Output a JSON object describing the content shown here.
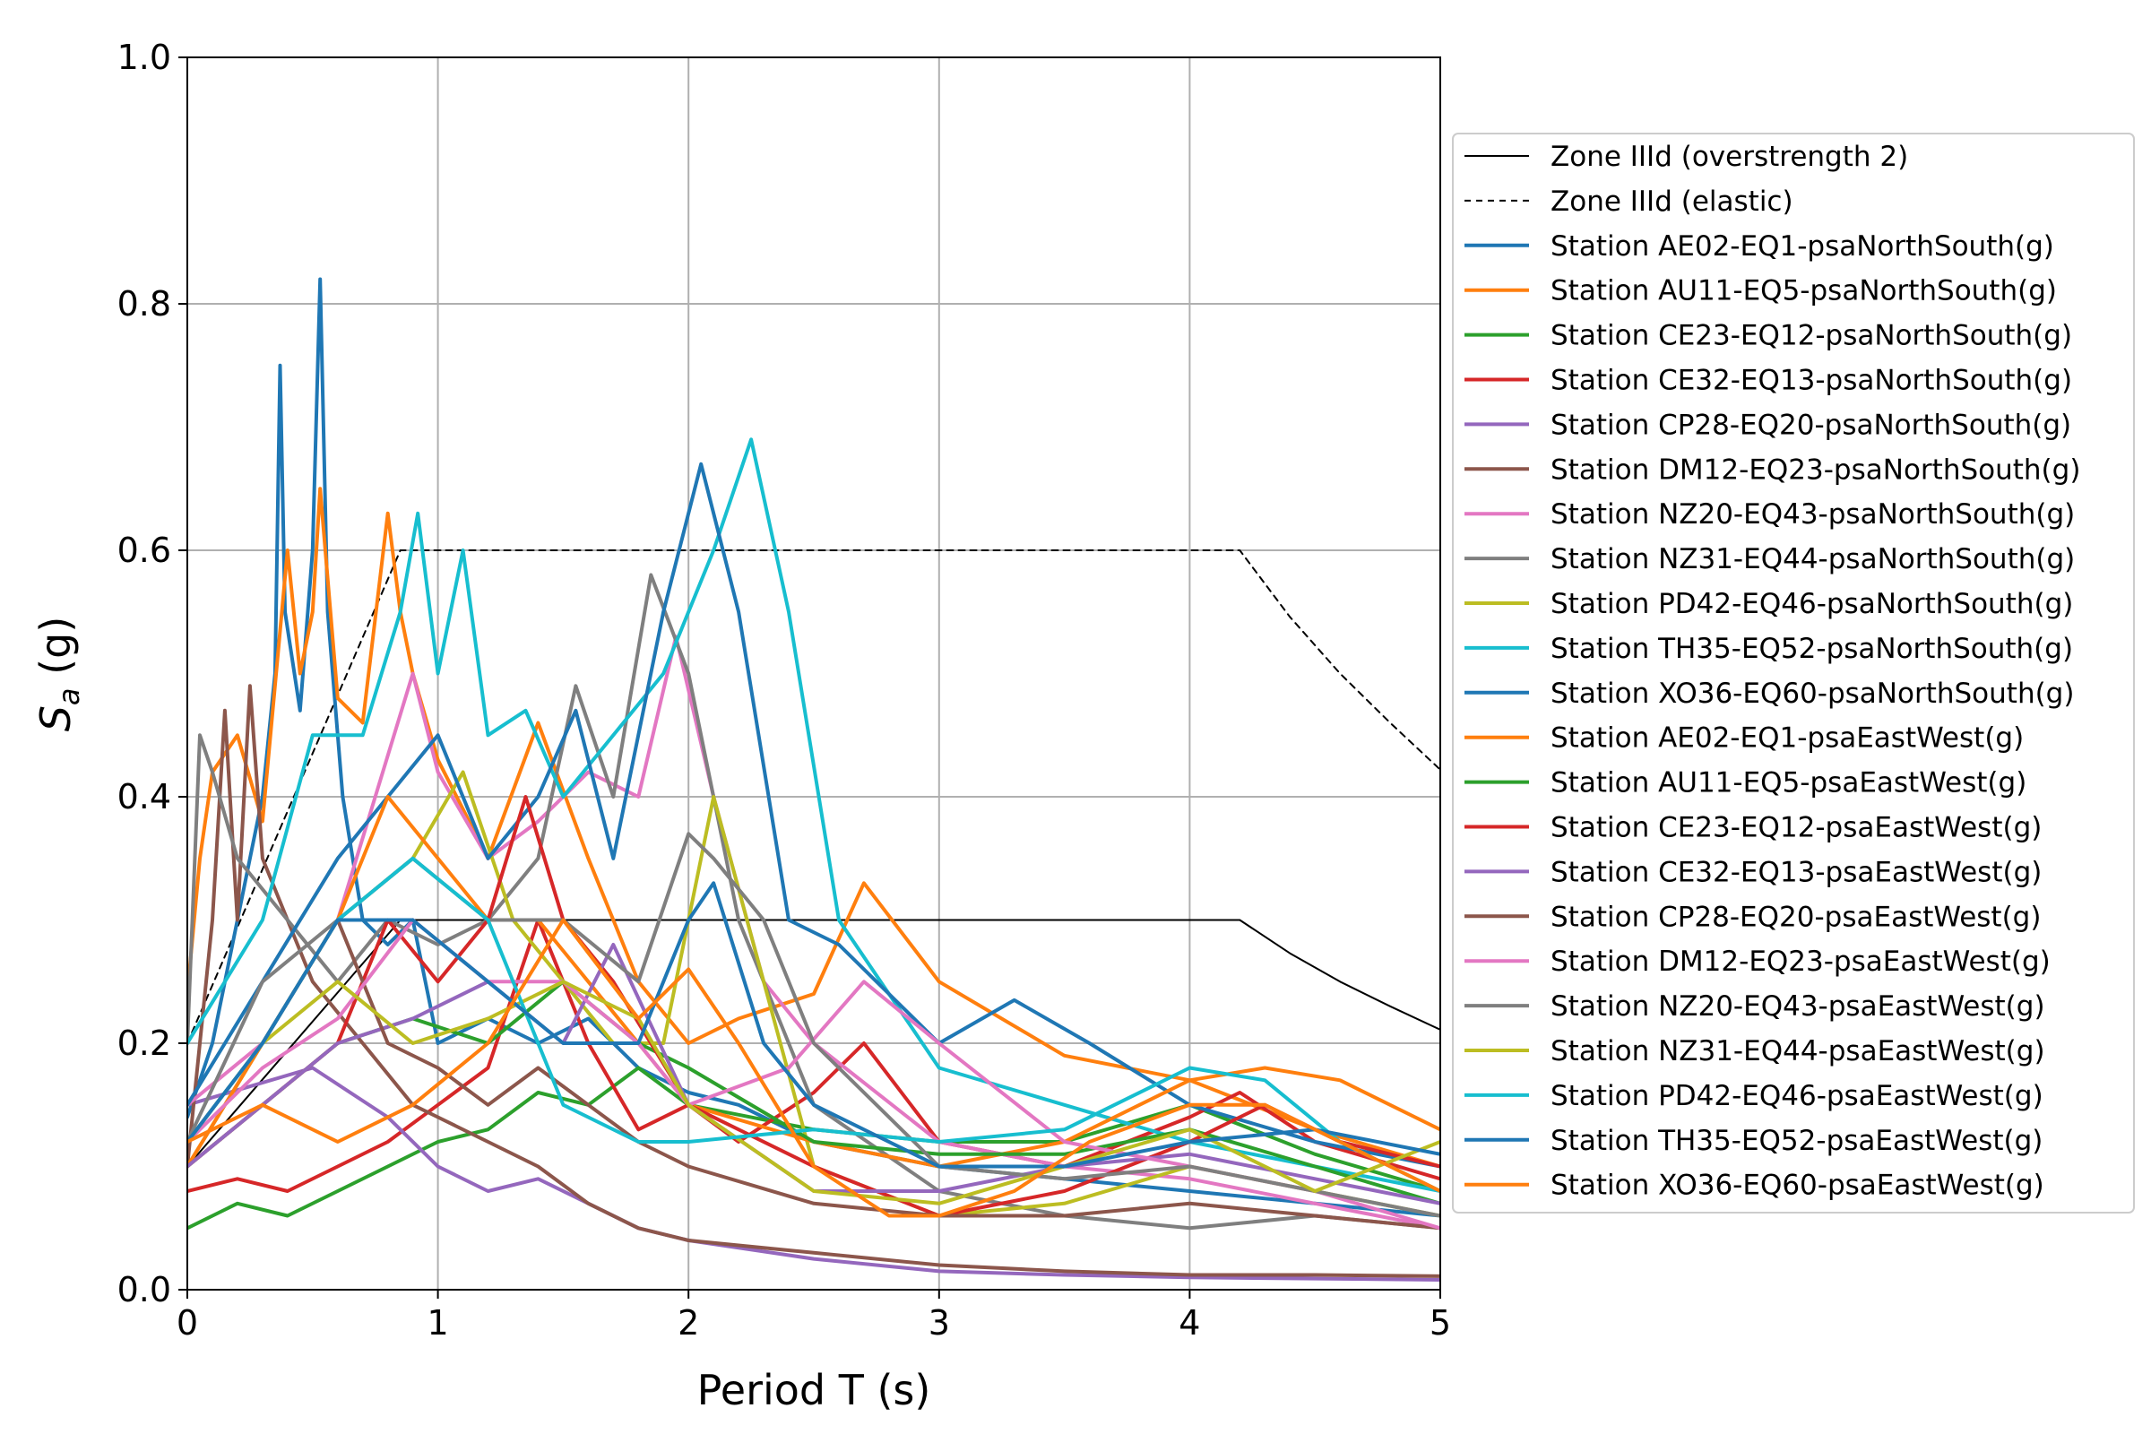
{
  "chart_data": {
    "type": "line",
    "xlabel": "Period T (s)",
    "ylabel": "S_a (g)",
    "ylabel_main": "S",
    "ylabel_sub": "a",
    "ylabel_unit": " (g)",
    "xlim": [
      0,
      5
    ],
    "ylim": [
      0,
      1.0
    ],
    "xticks": [
      0,
      1,
      2,
      3,
      4,
      5
    ],
    "xtick_labels": [
      "0",
      "1",
      "2",
      "3",
      "4",
      "5"
    ],
    "yticks": [
      0,
      0.2,
      0.4,
      0.6,
      0.8,
      1.0
    ],
    "ytick_labels": [
      "0.0",
      "0.2",
      "0.4",
      "0.6",
      "0.8",
      "1.0"
    ],
    "grid": true,
    "legend_position": "right, outside plot",
    "series": [
      {
        "name": "Zone IIId (overstrength 2)",
        "color": "#000000",
        "dash": "solid",
        "width": "thin",
        "x": [
          0,
          0.85,
          4.2,
          4.4,
          4.6,
          4.8,
          5.0
        ],
        "y": [
          0.1,
          0.3,
          0.3,
          0.273,
          0.25,
          0.23,
          0.211
        ]
      },
      {
        "name": "Zone IIId (elastic)",
        "color": "#000000",
        "dash": "dashed",
        "width": "thin",
        "x": [
          0,
          0.85,
          4.2,
          4.4,
          4.6,
          4.8,
          5.0
        ],
        "y": [
          0.2,
          0.6,
          0.6,
          0.546,
          0.5,
          0.46,
          0.422
        ]
      },
      {
        "name": "Station AE02-EQ1-psaNorthSouth(g)",
        "color": "#1f77b4",
        "x": [
          0,
          0.1,
          0.2,
          0.3,
          0.35,
          0.37,
          0.39,
          0.45,
          0.5,
          0.53,
          0.56,
          0.62,
          0.7,
          0.8,
          0.9,
          1.0,
          1.2,
          1.4,
          1.6,
          1.8,
          2.0,
          2.2,
          2.5,
          3.0,
          3.5,
          4.0,
          4.5,
          5.0
        ],
        "y": [
          0.14,
          0.2,
          0.3,
          0.4,
          0.5,
          0.75,
          0.55,
          0.47,
          0.6,
          0.82,
          0.55,
          0.4,
          0.3,
          0.28,
          0.3,
          0.2,
          0.22,
          0.2,
          0.22,
          0.18,
          0.16,
          0.15,
          0.12,
          0.1,
          0.09,
          0.08,
          0.07,
          0.06
        ]
      },
      {
        "name": "Station AU11-EQ5-psaNorthSouth(g)",
        "color": "#ff7f0e",
        "x": [
          0,
          0.05,
          0.1,
          0.2,
          0.3,
          0.4,
          0.45,
          0.5,
          0.53,
          0.6,
          0.7,
          0.8,
          0.85,
          0.9,
          1.0,
          1.2,
          1.4,
          1.6,
          1.8,
          2.0,
          2.2,
          2.5,
          2.7,
          3.0,
          3.5,
          4.0,
          4.5,
          5.0
        ],
        "y": [
          0.24,
          0.35,
          0.42,
          0.45,
          0.38,
          0.6,
          0.5,
          0.55,
          0.65,
          0.48,
          0.46,
          0.63,
          0.55,
          0.5,
          0.43,
          0.35,
          0.46,
          0.35,
          0.25,
          0.2,
          0.22,
          0.24,
          0.33,
          0.25,
          0.19,
          0.17,
          0.13,
          0.1
        ]
      },
      {
        "name": "Station CE23-EQ12-psaNorthSouth(g)",
        "color": "#2ca02c",
        "x": [
          0,
          0.2,
          0.4,
          0.6,
          0.8,
          1.0,
          1.2,
          1.4,
          1.6,
          1.8,
          2.0,
          2.5,
          3.0,
          3.5,
          4.0,
          4.5,
          5.0
        ],
        "y": [
          0.05,
          0.07,
          0.06,
          0.08,
          0.1,
          0.12,
          0.13,
          0.16,
          0.15,
          0.18,
          0.15,
          0.13,
          0.12,
          0.12,
          0.15,
          0.11,
          0.08
        ]
      },
      {
        "name": "Station CE32-EQ13-psaNorthSouth(g)",
        "color": "#d62728",
        "x": [
          0,
          0.2,
          0.4,
          0.6,
          0.8,
          1.0,
          1.2,
          1.4,
          1.6,
          1.8,
          2.0,
          2.2,
          2.5,
          2.7,
          3.0,
          3.5,
          4.0,
          4.2,
          4.5,
          5.0
        ],
        "y": [
          0.08,
          0.09,
          0.08,
          0.1,
          0.12,
          0.15,
          0.18,
          0.3,
          0.2,
          0.13,
          0.15,
          0.12,
          0.16,
          0.2,
          0.12,
          0.1,
          0.14,
          0.16,
          0.12,
          0.09
        ]
      },
      {
        "name": "Station CP28-EQ20-psaNorthSouth(g)",
        "color": "#9467bd",
        "x": [
          0,
          0.5,
          0.8,
          1.0,
          1.2,
          1.4,
          1.6,
          1.8,
          2.0,
          2.5,
          3.0,
          3.5,
          4.0,
          4.5,
          5.0
        ],
        "y": [
          0.15,
          0.18,
          0.14,
          0.1,
          0.08,
          0.09,
          0.07,
          0.05,
          0.04,
          0.025,
          0.015,
          0.012,
          0.01,
          0.009,
          0.008
        ]
      },
      {
        "name": "Station DM12-EQ23-psaNorthSouth(g)",
        "color": "#8c564b",
        "x": [
          0,
          0.1,
          0.15,
          0.2,
          0.25,
          0.3,
          0.4,
          0.5,
          0.7,
          0.9,
          1.0,
          1.2,
          1.4,
          1.6,
          1.8,
          2.0,
          2.5,
          3.0,
          3.5,
          4.0,
          4.5,
          5.0
        ],
        "y": [
          0.1,
          0.3,
          0.47,
          0.3,
          0.49,
          0.35,
          0.3,
          0.25,
          0.2,
          0.15,
          0.14,
          0.12,
          0.1,
          0.07,
          0.05,
          0.04,
          0.03,
          0.02,
          0.015,
          0.012,
          0.012,
          0.011
        ]
      },
      {
        "name": "Station NZ20-EQ43-psaNorthSouth(g)",
        "color": "#e377c2",
        "x": [
          0,
          0.3,
          0.6,
          0.9,
          1.0,
          1.2,
          1.4,
          1.6,
          1.8,
          1.95,
          2.1,
          2.3,
          2.5,
          3.0,
          3.5,
          4.0,
          4.5,
          5.0
        ],
        "y": [
          0.15,
          0.2,
          0.3,
          0.5,
          0.42,
          0.35,
          0.38,
          0.42,
          0.4,
          0.53,
          0.4,
          0.25,
          0.2,
          0.12,
          0.1,
          0.09,
          0.07,
          0.05
        ]
      },
      {
        "name": "Station NZ31-EQ44-psaNorthSouth(g)",
        "color": "#7f7f7f",
        "x": [
          0,
          0.05,
          0.1,
          0.2,
          0.4,
          0.6,
          0.8,
          1.0,
          1.2,
          1.4,
          1.55,
          1.7,
          1.85,
          2.0,
          2.2,
          2.5,
          3.0,
          3.5,
          4.0,
          4.5,
          5.0
        ],
        "y": [
          0.2,
          0.45,
          0.42,
          0.35,
          0.3,
          0.25,
          0.3,
          0.28,
          0.3,
          0.35,
          0.49,
          0.4,
          0.58,
          0.5,
          0.3,
          0.15,
          0.08,
          0.06,
          0.05,
          0.06,
          0.05
        ]
      },
      {
        "name": "Station PD42-EQ46-psaNorthSouth(g)",
        "color": "#bcbd22",
        "x": [
          0,
          0.3,
          0.6,
          0.9,
          1.1,
          1.3,
          1.5,
          1.7,
          1.9,
          2.1,
          2.3,
          2.5,
          3.0,
          3.5,
          4.0,
          4.5,
          5.0
        ],
        "y": [
          0.1,
          0.2,
          0.3,
          0.35,
          0.42,
          0.3,
          0.25,
          0.2,
          0.2,
          0.4,
          0.25,
          0.1,
          0.06,
          0.07,
          0.1,
          0.08,
          0.06
        ]
      },
      {
        "name": "Station TH35-EQ52-psaNorthSouth(g)",
        "color": "#17becf",
        "x": [
          0,
          0.3,
          0.5,
          0.7,
          0.85,
          0.92,
          1.0,
          1.1,
          1.2,
          1.35,
          1.5,
          1.7,
          1.9,
          2.1,
          2.25,
          2.4,
          2.6,
          3.0,
          3.5,
          4.0,
          4.5,
          5.0
        ],
        "y": [
          0.2,
          0.3,
          0.45,
          0.45,
          0.55,
          0.63,
          0.5,
          0.6,
          0.45,
          0.47,
          0.4,
          0.45,
          0.5,
          0.6,
          0.69,
          0.55,
          0.3,
          0.18,
          0.15,
          0.12,
          0.1,
          0.08
        ]
      },
      {
        "name": "Station XO36-EQ60-psaNorthSouth(g)",
        "color": "#1f77b4",
        "x": [
          0,
          0.3,
          0.6,
          0.8,
          1.0,
          1.2,
          1.4,
          1.55,
          1.7,
          1.9,
          2.05,
          2.2,
          2.4,
          2.6,
          3.0,
          3.3,
          3.6,
          4.0,
          4.5,
          5.0
        ],
        "y": [
          0.15,
          0.25,
          0.35,
          0.4,
          0.45,
          0.35,
          0.4,
          0.47,
          0.35,
          0.55,
          0.67,
          0.55,
          0.3,
          0.28,
          0.2,
          0.235,
          0.2,
          0.15,
          0.12,
          0.1
        ]
      },
      {
        "name": "Station AE02-EQ1-psaEastWest(g)",
        "color": "#ff7f0e",
        "x": [
          0,
          0.3,
          0.6,
          0.8,
          1.0,
          1.2,
          1.4,
          1.6,
          1.8,
          2.0,
          2.5,
          3.0,
          3.5,
          4.0,
          4.3,
          4.6,
          5.0
        ],
        "y": [
          0.1,
          0.2,
          0.3,
          0.4,
          0.35,
          0.3,
          0.3,
          0.25,
          0.2,
          0.15,
          0.12,
          0.1,
          0.12,
          0.17,
          0.18,
          0.17,
          0.13
        ]
      },
      {
        "name": "Station AU11-EQ5-psaEastWest(g)",
        "color": "#2ca02c",
        "x": [
          0,
          0.3,
          0.6,
          0.9,
          1.2,
          1.5,
          1.8,
          2.0,
          2.5,
          3.0,
          3.5,
          4.0,
          4.5,
          5.0
        ],
        "y": [
          0.1,
          0.15,
          0.2,
          0.22,
          0.2,
          0.25,
          0.2,
          0.18,
          0.12,
          0.11,
          0.11,
          0.13,
          0.1,
          0.07
        ]
      },
      {
        "name": "Station CE23-EQ12-psaEastWest(g)",
        "color": "#d62728",
        "x": [
          0,
          0.3,
          0.6,
          0.8,
          1.0,
          1.2,
          1.35,
          1.5,
          1.7,
          2.0,
          2.5,
          3.0,
          3.5,
          4.0,
          4.3,
          4.6,
          5.0
        ],
        "y": [
          0.1,
          0.15,
          0.2,
          0.3,
          0.25,
          0.3,
          0.4,
          0.3,
          0.25,
          0.15,
          0.1,
          0.06,
          0.08,
          0.12,
          0.15,
          0.12,
          0.1
        ]
      },
      {
        "name": "Station CE32-EQ13-psaEastWest(g)",
        "color": "#9467bd",
        "x": [
          0,
          0.3,
          0.6,
          0.9,
          1.2,
          1.5,
          1.7,
          2.0,
          2.5,
          3.0,
          3.5,
          4.0,
          4.5,
          5.0
        ],
        "y": [
          0.1,
          0.15,
          0.2,
          0.22,
          0.25,
          0.2,
          0.28,
          0.15,
          0.08,
          0.08,
          0.1,
          0.11,
          0.09,
          0.07
        ]
      },
      {
        "name": "Station CP28-EQ20-psaEastWest(g)",
        "color": "#8c564b",
        "x": [
          0,
          0.3,
          0.6,
          0.8,
          1.0,
          1.2,
          1.4,
          1.6,
          1.8,
          2.0,
          2.5,
          3.0,
          3.5,
          4.0,
          4.5,
          5.0
        ],
        "y": [
          0.12,
          0.2,
          0.3,
          0.2,
          0.18,
          0.15,
          0.18,
          0.15,
          0.12,
          0.1,
          0.07,
          0.06,
          0.06,
          0.07,
          0.06,
          0.05
        ]
      },
      {
        "name": "Station DM12-EQ23-psaEastWest(g)",
        "color": "#e377c2",
        "x": [
          0,
          0.3,
          0.6,
          0.9,
          1.2,
          1.5,
          1.8,
          2.0,
          2.4,
          2.7,
          3.0,
          3.5,
          4.0,
          4.5,
          5.0
        ],
        "y": [
          0.12,
          0.18,
          0.22,
          0.3,
          0.25,
          0.25,
          0.2,
          0.15,
          0.18,
          0.25,
          0.2,
          0.12,
          0.1,
          0.08,
          0.05
        ]
      },
      {
        "name": "Station NZ20-EQ43-psaEastWest(g)",
        "color": "#7f7f7f",
        "x": [
          0,
          0.3,
          0.6,
          0.9,
          1.2,
          1.5,
          1.8,
          2.0,
          2.1,
          2.3,
          2.5,
          3.0,
          3.5,
          4.0,
          4.5,
          5.0
        ],
        "y": [
          0.12,
          0.25,
          0.3,
          0.35,
          0.3,
          0.3,
          0.25,
          0.37,
          0.35,
          0.3,
          0.2,
          0.1,
          0.09,
          0.1,
          0.08,
          0.06
        ]
      },
      {
        "name": "Station NZ31-EQ44-psaEastWest(g)",
        "color": "#bcbd22",
        "x": [
          0,
          0.3,
          0.6,
          0.9,
          1.2,
          1.5,
          1.8,
          2.0,
          2.5,
          3.0,
          3.5,
          4.0,
          4.5,
          5.0
        ],
        "y": [
          0.12,
          0.2,
          0.25,
          0.2,
          0.22,
          0.25,
          0.22,
          0.15,
          0.08,
          0.07,
          0.1,
          0.13,
          0.08,
          0.12
        ]
      },
      {
        "name": "Station PD42-EQ46-psaEastWest(g)",
        "color": "#17becf",
        "x": [
          0,
          0.3,
          0.6,
          0.9,
          1.2,
          1.5,
          1.8,
          2.0,
          2.5,
          3.0,
          3.5,
          4.0,
          4.3,
          4.6,
          5.0
        ],
        "y": [
          0.12,
          0.2,
          0.3,
          0.35,
          0.3,
          0.15,
          0.12,
          0.12,
          0.13,
          0.12,
          0.13,
          0.18,
          0.17,
          0.12,
          0.08
        ]
      },
      {
        "name": "Station TH35-EQ52-psaEastWest(g)",
        "color": "#1f77b4",
        "x": [
          0,
          0.3,
          0.6,
          0.9,
          1.2,
          1.5,
          1.8,
          2.0,
          2.1,
          2.3,
          2.5,
          3.0,
          3.5,
          4.0,
          4.5,
          5.0
        ],
        "y": [
          0.12,
          0.2,
          0.3,
          0.3,
          0.25,
          0.2,
          0.2,
          0.3,
          0.33,
          0.2,
          0.15,
          0.1,
          0.1,
          0.12,
          0.13,
          0.11
        ]
      },
      {
        "name": "Station XO36-EQ60-psaEastWest(g)",
        "color": "#ff7f0e",
        "x": [
          0,
          0.3,
          0.6,
          0.9,
          1.2,
          1.5,
          1.8,
          2.0,
          2.2,
          2.5,
          2.8,
          3.0,
          3.3,
          3.6,
          4.0,
          4.3,
          4.6,
          5.0
        ],
        "y": [
          0.12,
          0.15,
          0.12,
          0.15,
          0.2,
          0.3,
          0.22,
          0.26,
          0.2,
          0.1,
          0.06,
          0.06,
          0.08,
          0.12,
          0.15,
          0.15,
          0.12,
          0.08
        ]
      }
    ]
  }
}
